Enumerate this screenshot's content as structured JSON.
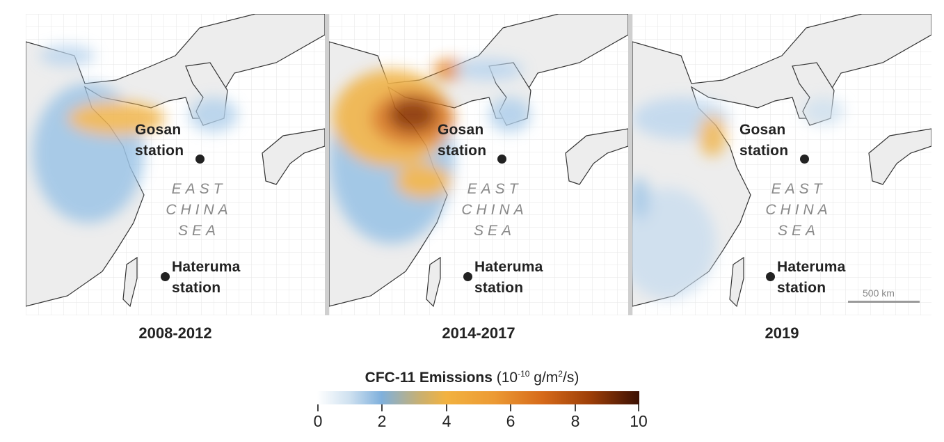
{
  "panels": [
    {
      "period": "2008-2012",
      "gosan_label": "Gosan station",
      "hateruma_label": "Hateruma station",
      "sea_label": "EAST CHINA SEA"
    },
    {
      "period": "2014-2017",
      "gosan_label": "Gosan station",
      "hateruma_label": "Hateruma station",
      "sea_label": "EAST CHINA SEA"
    },
    {
      "period": "2019",
      "gosan_label": "Gosan station",
      "hateruma_label": "Hateruma station",
      "sea_label": "EAST CHINA SEA"
    }
  ],
  "labels": {
    "gosan_line1": "Gosan",
    "gosan_line2": "station",
    "hateruma_line1": "Hateruma",
    "hateruma_line2": "station",
    "sea_line1": "EAST",
    "sea_line2": "CHINA",
    "sea_line3": "SEA"
  },
  "scale_bar": {
    "label": "500 km"
  },
  "legend": {
    "title_bold": "CFC-11 Emissions",
    "unit_prefix": "(10",
    "unit_exp": "-10",
    "unit_mid": " g/m",
    "unit_exp2": "2",
    "unit_suffix": "/s)",
    "ticks": [
      "0",
      "2",
      "4",
      "6",
      "8",
      "10"
    ],
    "colors": [
      "#ffffff",
      "#7fb0dc",
      "#f2b240",
      "#d66a1a",
      "#3b1004"
    ]
  }
}
